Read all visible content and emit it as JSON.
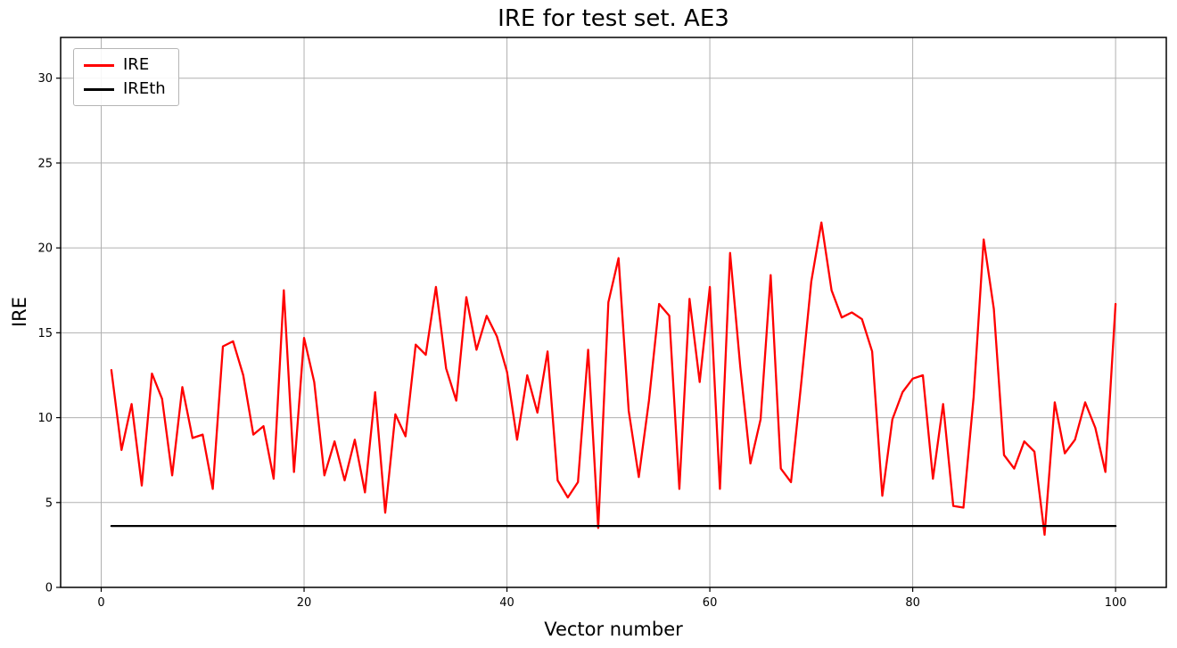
{
  "chart_data": {
    "type": "line",
    "title": "IRE for test set. AE3",
    "xlabel": "Vector number",
    "ylabel": "IRE",
    "xlim": [
      -4,
      105
    ],
    "ylim": [
      0,
      32.4
    ],
    "xticks": [
      0,
      20,
      40,
      60,
      80,
      100
    ],
    "yticks": [
      0,
      5,
      10,
      15,
      20,
      25,
      30
    ],
    "grid": true,
    "grid_color": "#b0b0b0",
    "legend": {
      "position": "upper-left",
      "entries": [
        {
          "label": "IRE",
          "color": "#ff0000"
        },
        {
          "label": "IREth",
          "color": "#000000"
        }
      ]
    },
    "series": [
      {
        "name": "IRE",
        "color": "#ff0000",
        "x_start": 1,
        "values": [
          12.8,
          8.1,
          10.8,
          6.0,
          12.6,
          11.1,
          6.6,
          11.8,
          8.8,
          9.0,
          5.8,
          14.2,
          14.5,
          12.5,
          9.0,
          9.5,
          6.4,
          17.5,
          6.8,
          14.7,
          12.1,
          6.6,
          8.6,
          6.3,
          8.7,
          5.6,
          11.5,
          4.4,
          10.2,
          8.9,
          14.3,
          13.7,
          17.7,
          12.9,
          11.0,
          17.1,
          14.0,
          16.0,
          14.8,
          12.7,
          8.7,
          12.5,
          10.3,
          13.9,
          6.3,
          5.3,
          6.2,
          14.0,
          3.5,
          16.8,
          19.4,
          10.4,
          6.5,
          11.0,
          16.7,
          16.0,
          5.8,
          17.0,
          12.1,
          17.7,
          5.8,
          19.7,
          13.0,
          7.3,
          9.9,
          18.4,
          7.0,
          6.2,
          12.0,
          18.0,
          21.5,
          17.5,
          15.9,
          16.2,
          15.8,
          13.9,
          5.4,
          9.9,
          11.5,
          12.3,
          12.5,
          6.4,
          10.8,
          4.8,
          4.7,
          11.2,
          20.5,
          16.4,
          7.8,
          7.0,
          8.6,
          8.0,
          3.1,
          10.9,
          7.9,
          8.7,
          10.9,
          9.4,
          6.8,
          16.7
        ]
      },
      {
        "name": "IREth",
        "color": "#000000",
        "x": [
          1,
          100
        ],
        "values": [
          3.62,
          3.62
        ]
      }
    ]
  }
}
